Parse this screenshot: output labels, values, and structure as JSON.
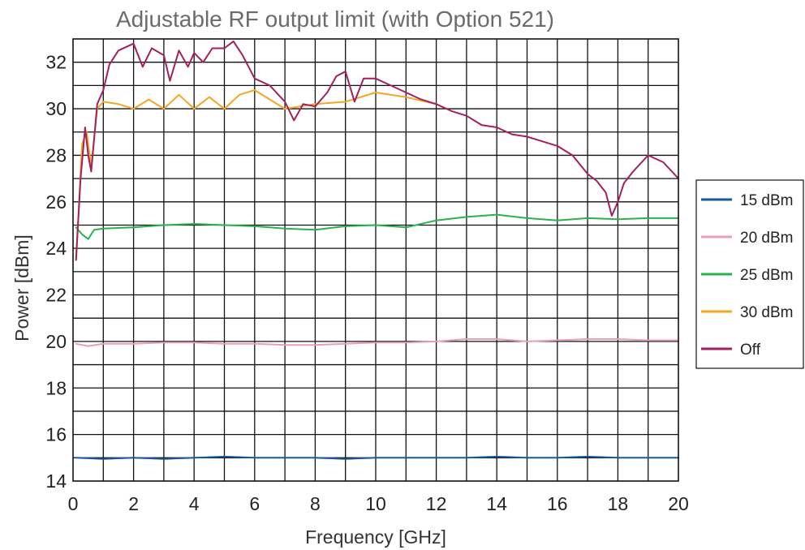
{
  "chart_data": {
    "type": "line",
    "title": "Adjustable RF output limit (with Option 521)",
    "xlabel": "Frequency [GHz]",
    "ylabel": "Power [dBm]",
    "xlim": [
      0,
      20
    ],
    "ylim": [
      14,
      33
    ],
    "x_ticks": [
      0,
      2,
      4,
      6,
      8,
      10,
      12,
      14,
      16,
      18,
      20
    ],
    "y_ticks": [
      14,
      16,
      18,
      20,
      22,
      24,
      26,
      28,
      30,
      32
    ],
    "grid": true,
    "grid_x_step": 1,
    "grid_y_step": 1,
    "legend_position": "right",
    "series": [
      {
        "name": "15 dBm",
        "color": "#1a5a9a",
        "x": [
          0.1,
          1,
          2,
          3,
          4,
          5,
          6,
          7,
          8,
          9,
          10,
          11,
          12,
          13,
          14,
          15,
          16,
          17,
          18,
          19,
          20
        ],
        "y": [
          15.0,
          14.95,
          15.0,
          14.95,
          15.0,
          15.05,
          15.0,
          15.0,
          15.0,
          14.95,
          15.0,
          15.0,
          15.0,
          15.0,
          15.05,
          15.0,
          15.0,
          15.05,
          15.0,
          15.0,
          15.0
        ]
      },
      {
        "name": "20 dBm",
        "color": "#e8a0b0",
        "x": [
          0.1,
          0.5,
          1,
          2,
          3,
          4,
          5,
          6,
          7,
          8,
          9,
          10,
          11,
          12,
          13,
          14,
          15,
          16,
          17,
          18,
          19,
          20
        ],
        "y": [
          19.9,
          19.8,
          19.9,
          19.9,
          19.95,
          19.95,
          19.9,
          19.9,
          19.85,
          19.85,
          19.9,
          19.95,
          19.95,
          20.0,
          20.1,
          20.1,
          20.0,
          20.05,
          20.1,
          20.1,
          20.05,
          20.05
        ]
      },
      {
        "name": "25 dBm",
        "color": "#2bb24c",
        "x": [
          0.1,
          0.3,
          0.5,
          0.7,
          1,
          2,
          3,
          4,
          5,
          6,
          7,
          8,
          9,
          10,
          11,
          12,
          13,
          14,
          15,
          16,
          17,
          18,
          19,
          20
        ],
        "y": [
          24.9,
          24.6,
          24.4,
          24.8,
          24.85,
          24.9,
          25.0,
          25.05,
          25.0,
          24.95,
          24.85,
          24.8,
          24.95,
          25.0,
          24.9,
          25.2,
          25.35,
          25.45,
          25.3,
          25.2,
          25.3,
          25.25,
          25.3,
          25.3
        ]
      },
      {
        "name": "30 dBm",
        "color": "#f5a623",
        "x": [
          0.1,
          0.3,
          0.45,
          0.6,
          0.8,
          1.0,
          1.5,
          2.0,
          2.5,
          3.0,
          3.5,
          4.0,
          4.5,
          5.0,
          5.5,
          6.0,
          7.0,
          8.0,
          9.0,
          10.0,
          11.0,
          12.0
        ],
        "y": [
          23.5,
          28.5,
          29.0,
          27.5,
          30.0,
          30.3,
          30.2,
          30.0,
          30.4,
          30.0,
          30.6,
          30.0,
          30.5,
          30.0,
          30.6,
          30.8,
          30.0,
          30.2,
          30.3,
          30.7,
          30.5,
          30.2
        ]
      },
      {
        "name": "Off",
        "color": "#a3205e",
        "x": [
          0.1,
          0.25,
          0.4,
          0.5,
          0.6,
          0.8,
          1.0,
          1.2,
          1.5,
          2.0,
          2.3,
          2.6,
          3.0,
          3.2,
          3.5,
          3.8,
          4.0,
          4.3,
          4.6,
          5.0,
          5.3,
          5.6,
          6.0,
          6.5,
          7.0,
          7.3,
          7.6,
          8.0,
          8.4,
          8.7,
          9.0,
          9.3,
          9.6,
          10.0,
          10.5,
          11.0,
          11.5,
          12.0,
          12.5,
          13.0,
          13.5,
          14.0,
          14.5,
          15.0,
          15.5,
          16.0,
          16.5,
          17.0,
          17.3,
          17.6,
          17.8,
          18.0,
          18.2,
          18.5,
          19.0,
          19.5,
          20.0
        ],
        "y": [
          23.5,
          27.0,
          29.2,
          28.0,
          27.3,
          30.2,
          30.8,
          31.9,
          32.5,
          32.8,
          31.8,
          32.6,
          32.3,
          31.2,
          32.5,
          31.8,
          32.4,
          32.0,
          32.6,
          32.6,
          32.9,
          32.3,
          31.3,
          31.0,
          30.3,
          29.5,
          30.2,
          30.1,
          30.7,
          31.4,
          31.6,
          30.3,
          31.3,
          31.3,
          31.0,
          30.7,
          30.4,
          30.2,
          29.9,
          29.7,
          29.3,
          29.2,
          28.9,
          28.8,
          28.6,
          28.4,
          28.0,
          27.2,
          26.9,
          26.4,
          25.4,
          26.0,
          26.8,
          27.3,
          28.0,
          27.7,
          27.0
        ]
      }
    ]
  }
}
